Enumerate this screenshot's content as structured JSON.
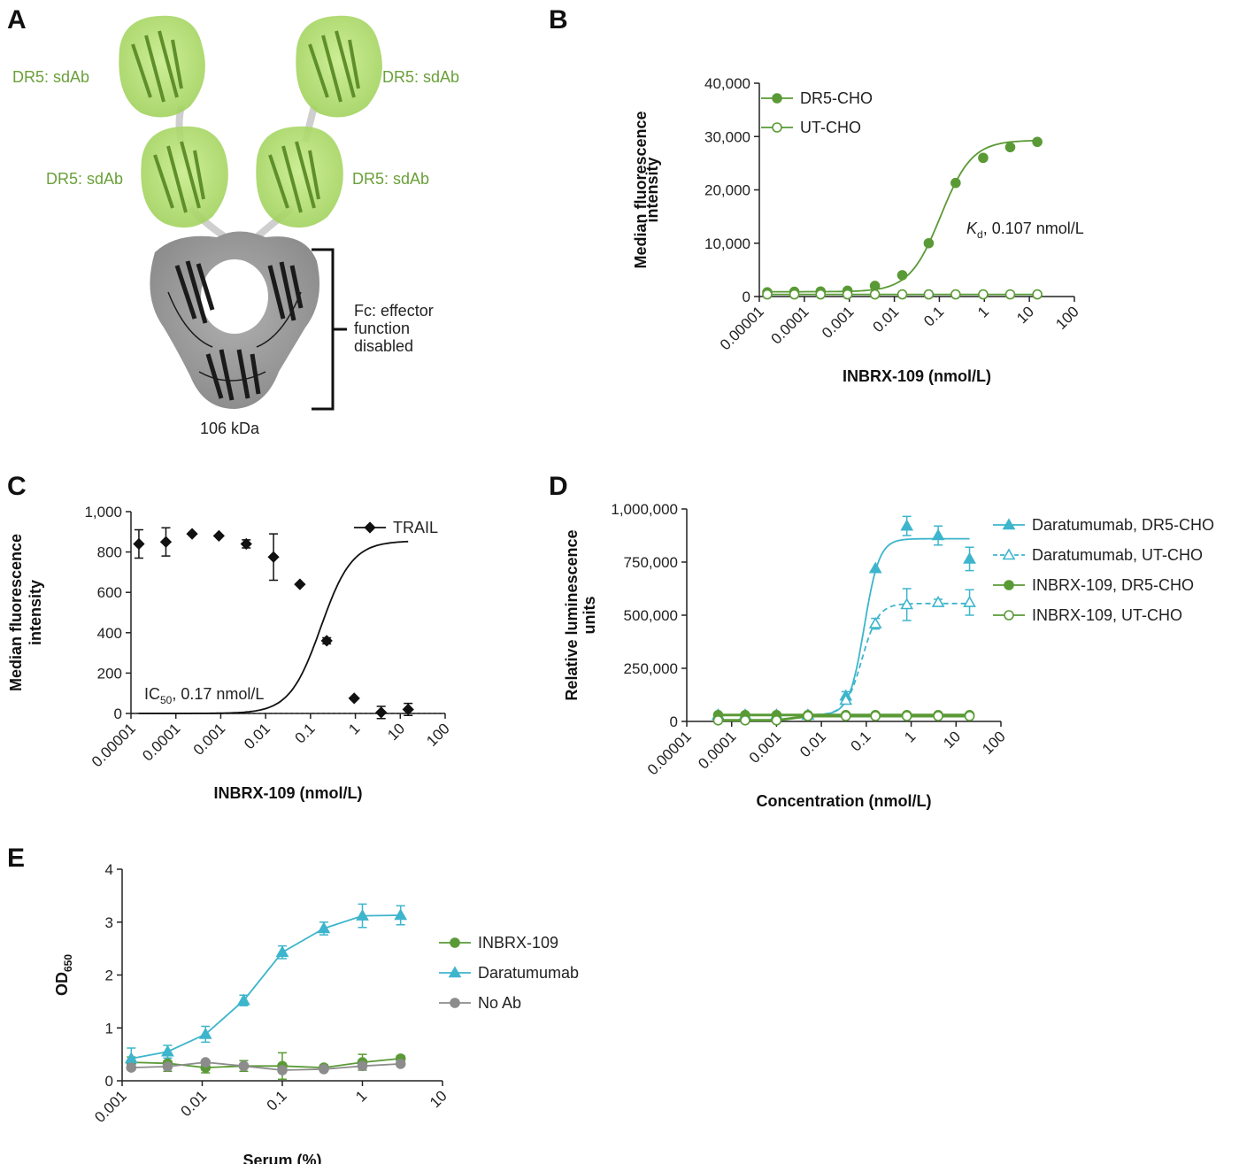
{
  "panels": {
    "A": {
      "label": "A",
      "domains": [
        "DR5: sdAb",
        "DR5: sdAb",
        "DR5: sdAb",
        "DR5: sdAb"
      ],
      "fc_label": [
        "Fc: effector",
        "function",
        "disabled"
      ],
      "mass": "106 kDa",
      "domain_color": "#a8d86a",
      "fc_color": "#8c8c8c"
    }
  },
  "chart_data": [
    {
      "id": "B",
      "label": "B",
      "type": "scatter",
      "xscale": "log",
      "xlim": [
        1e-05,
        100
      ],
      "xticks": [
        "0.00001",
        "0.0001",
        "0.001",
        "0.01",
        "0.1",
        "1",
        "10",
        "100"
      ],
      "ylim": [
        0,
        40000
      ],
      "yticks": [
        "0",
        "10,000",
        "20,000",
        "30,000",
        "40,000"
      ],
      "xlabel": "INBRX-109 (nmol/L)",
      "ylabel": [
        "Median fluorescence",
        "intensity"
      ],
      "annotation": {
        "main": "K",
        "sub": "d",
        "rest": ", 0.107 nmol/L"
      },
      "series": [
        {
          "name": "DR5-CHO",
          "color": "#5a9a36",
          "marker": "circle",
          "filled": true,
          "fit": "sigmoid",
          "x": [
            1.5e-05,
            6e-05,
            0.00023,
            0.00091,
            0.0037,
            0.015,
            0.058,
            0.23,
            0.94,
            3.75,
            15
          ],
          "y": [
            800,
            900,
            950,
            1100,
            2000,
            4000,
            10000,
            21300,
            26000,
            28000,
            29000
          ]
        },
        {
          "name": "UT-CHO",
          "color": "#5a9a36",
          "marker": "circle",
          "filled": false,
          "fit": "flat",
          "x": [
            1.5e-05,
            6e-05,
            0.00023,
            0.00091,
            0.0037,
            0.015,
            0.058,
            0.23,
            0.94,
            3.75,
            15
          ],
          "y": [
            400,
            400,
            400,
            400,
            400,
            400,
            400,
            400,
            400,
            400,
            400
          ]
        }
      ]
    },
    {
      "id": "C",
      "label": "C",
      "type": "scatter",
      "xscale": "log",
      "xlim": [
        1e-05,
        100
      ],
      "xticks": [
        "0.00001",
        "0.0001",
        "0.001",
        "0.01",
        "0.1",
        "1",
        "10",
        "100"
      ],
      "ylim": [
        0,
        1000
      ],
      "yticks": [
        "0",
        "200",
        "400",
        "600",
        "800",
        "1,000"
      ],
      "xlabel": "INBRX-109 (nmol/L)",
      "ylabel": [
        "Median fluorescence",
        "intensity"
      ],
      "annotation": {
        "main": "IC",
        "sub": "50",
        "rest": ", 0.17 nmol/L"
      },
      "series": [
        {
          "name": "TRAIL",
          "color": "#111111",
          "marker": "diamond",
          "filled": true,
          "fit": "sigmoid-down",
          "x": [
            1.5e-05,
            6e-05,
            0.00023,
            0.00091,
            0.0037,
            0.015,
            0.058,
            0.23,
            0.94,
            3.75,
            15
          ],
          "y": [
            840,
            850,
            890,
            880,
            840,
            775,
            640,
            360,
            75,
            5,
            20
          ],
          "err": [
            70,
            70,
            0,
            0,
            20,
            115,
            0,
            15,
            0,
            30,
            30
          ]
        }
      ]
    },
    {
      "id": "D",
      "label": "D",
      "type": "scatter",
      "xscale": "log",
      "xlim": [
        1e-05,
        100
      ],
      "xticks": [
        "0.00001",
        "0.0001",
        "0.001",
        "0.01",
        "0.1",
        "1",
        "10",
        "100"
      ],
      "ylim": [
        0,
        1000000
      ],
      "yticks": [
        "0",
        "250,000",
        "500,000",
        "750,000",
        "1,000,000"
      ],
      "xlabel": "Concentration (nmol/L)",
      "ylabel": [
        "Relative luminescence",
        "units"
      ],
      "series": [
        {
          "name": "Daratumumab, DR5-CHO",
          "color": "#3db5cc",
          "marker": "triangle",
          "filled": true,
          "dash": false,
          "x": [
            5e-05,
            0.0002,
            0.001,
            0.005,
            0.035,
            0.16,
            0.8,
            4,
            20
          ],
          "y": [
            30000,
            30000,
            30000,
            30000,
            120000,
            720000,
            920000,
            875000,
            765000
          ],
          "err": [
            0,
            0,
            0,
            0,
            20000,
            0,
            45000,
            45000,
            55000
          ]
        },
        {
          "name": "Daratumumab, UT-CHO",
          "color": "#3db5cc",
          "marker": "triangle",
          "filled": false,
          "dash": true,
          "x": [
            5e-05,
            0.0002,
            0.001,
            0.005,
            0.035,
            0.16,
            0.8,
            4,
            20
          ],
          "y": [
            30000,
            30000,
            30000,
            30000,
            100000,
            460000,
            550000,
            560000,
            560000
          ],
          "err": [
            0,
            0,
            0,
            0,
            15000,
            25000,
            75000,
            15000,
            60000
          ]
        },
        {
          "name": "INBRX-109, DR5-CHO",
          "color": "#5a9a36",
          "marker": "circle",
          "filled": true,
          "dash": false,
          "x": [
            5e-05,
            0.0002,
            0.001,
            0.005,
            0.035,
            0.16,
            0.8,
            4,
            20
          ],
          "y": [
            30000,
            30000,
            30000,
            30000,
            30000,
            30000,
            30000,
            30000,
            30000
          ]
        },
        {
          "name": "INBRX-109, UT-CHO",
          "color": "#5a9a36",
          "marker": "circle",
          "filled": false,
          "dash": false,
          "x": [
            5e-05,
            0.0002,
            0.001,
            0.005,
            0.035,
            0.16,
            0.8,
            4,
            20
          ],
          "y": [
            5000,
            5000,
            5000,
            25000,
            25000,
            25000,
            25000,
            25000,
            25000
          ]
        }
      ]
    },
    {
      "id": "E",
      "label": "E",
      "type": "line",
      "xscale": "log",
      "xlim": [
        0.001,
        10
      ],
      "xticks": [
        "0.001",
        "0.01",
        "0.1",
        "1",
        "10"
      ],
      "ylim": [
        0,
        4
      ],
      "yticks": [
        "0",
        "1",
        "2",
        "3",
        "4"
      ],
      "xlabel": "Serum (%)",
      "ylabel": {
        "main": "OD",
        "sub": "650"
      },
      "series": [
        {
          "name": "INBRX-109",
          "color": "#5a9a36",
          "marker": "circle",
          "x": [
            0.0013,
            0.0037,
            0.011,
            0.033,
            0.1,
            0.33,
            1,
            3
          ],
          "y": [
            0.35,
            0.33,
            0.25,
            0.28,
            0.28,
            0.25,
            0.35,
            0.42
          ],
          "err": [
            0.1,
            0.15,
            0.1,
            0.1,
            0.25,
            0.05,
            0.15,
            0.05
          ]
        },
        {
          "name": "Daratumumab",
          "color": "#3db5cc",
          "marker": "triangle",
          "x": [
            0.0013,
            0.0037,
            0.011,
            0.033,
            0.1,
            0.33,
            1,
            3
          ],
          "y": [
            0.42,
            0.55,
            0.88,
            1.52,
            2.43,
            2.88,
            3.12,
            3.13
          ],
          "err": [
            0.2,
            0.12,
            0.15,
            0.1,
            0.12,
            0.12,
            0.22,
            0.18
          ]
        },
        {
          "name": "No Ab",
          "color": "#8c8c8c",
          "marker": "circle",
          "x": [
            0.0013,
            0.0037,
            0.011,
            0.033,
            0.1,
            0.33,
            1,
            3
          ],
          "y": [
            0.25,
            0.27,
            0.35,
            0.28,
            0.2,
            0.22,
            0.28,
            0.32
          ],
          "err": [
            0,
            0,
            0,
            0,
            0,
            0,
            0,
            0
          ]
        }
      ]
    }
  ]
}
